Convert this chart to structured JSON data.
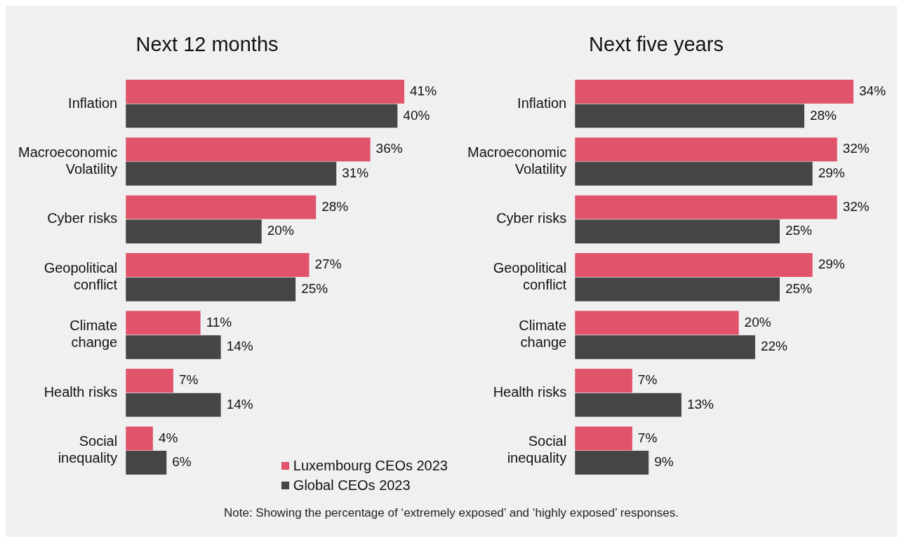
{
  "chart_data": [
    {
      "type": "bar",
      "orientation": "horizontal",
      "title": "Next 12 months",
      "categories": [
        "Inflation",
        "Macroeconomic\nVolatility",
        "Cyber risks",
        "Geopolitical\nconflict",
        "Climate\nchange",
        "Health risks",
        "Social\ninequality"
      ],
      "series": [
        {
          "name": "Luxembourg CEOs 2023",
          "color": "#e0536b",
          "values": [
            41,
            36,
            28,
            27,
            11,
            7,
            4
          ],
          "value_labels": [
            "41%",
            "36%",
            "28%",
            "27%",
            "11%",
            "7%",
            "4%"
          ]
        },
        {
          "name": "Global CEOs 2023",
          "color": "#454545",
          "values": [
            40,
            31,
            20,
            25,
            14,
            14,
            6
          ],
          "value_labels": [
            "40%",
            "31%",
            "20%",
            "25%",
            "14%",
            "14%",
            "6%"
          ]
        }
      ],
      "legend": "bottom right",
      "grid": false,
      "tick_labels": "y"
    },
    {
      "type": "bar",
      "orientation": "horizontal",
      "title": "Next five years",
      "categories": [
        "Inflation",
        "Macroeconomic\nVolatility",
        "Cyber risks",
        "Geopolitical\nconflict",
        "Climate\nchange",
        "Health risks",
        "Social\ninequality"
      ],
      "series": [
        {
          "color": "#e0536b",
          "values": [
            34,
            32,
            32,
            29,
            20,
            7,
            7
          ],
          "value_labels": [
            "34%",
            "32%",
            "32%",
            "29%",
            "20%",
            "7%",
            "7%"
          ]
        },
        {
          "color": "#454545",
          "values": [
            28,
            29,
            25,
            25,
            22,
            13,
            9
          ],
          "value_labels": [
            "28%",
            "29%",
            "25%",
            "25%",
            "22%",
            "13%",
            "9%"
          ]
        }
      ],
      "grid": false,
      "tick_labels": "y",
      "annotations": [
        "Note: Showing the percentage of ‘extremely exposed’ and ‘highly exposed’ responses."
      ]
    }
  ]
}
